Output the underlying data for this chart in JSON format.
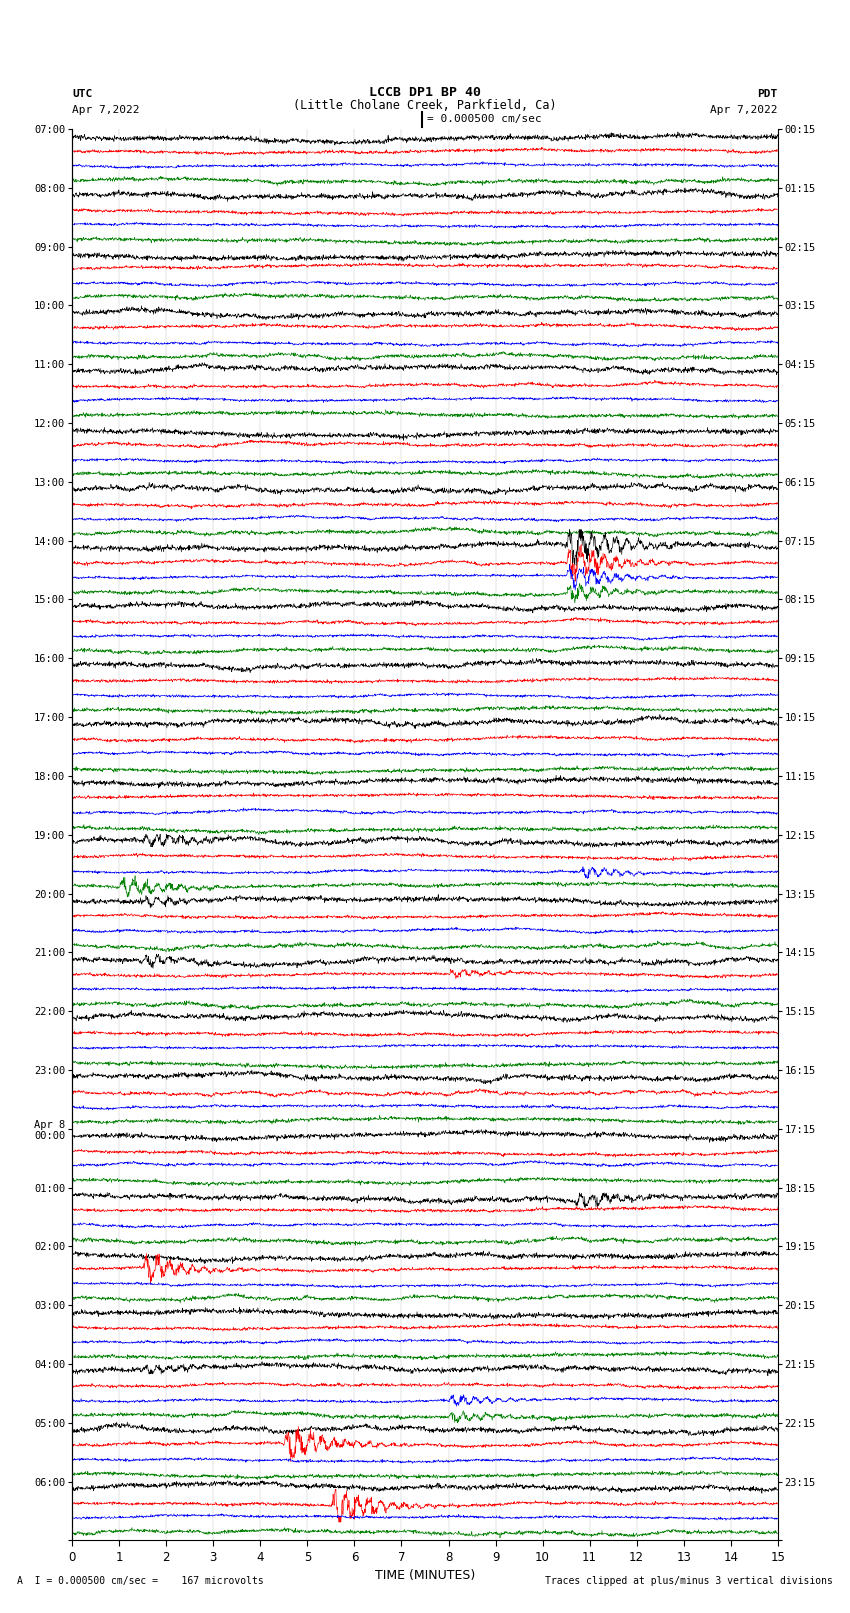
{
  "title_line1": "LCCB DP1 BP 40",
  "title_line2": "(Little Cholane Creek, Parkfield, Ca)",
  "scale_label": "= 0.000500 cm/sec",
  "left_header_line1": "UTC",
  "left_header_line2": "Apr 7,2022",
  "right_header_line1": "PDT",
  "right_header_line2": "Apr 7,2022",
  "xlabel": "TIME (MINUTES)",
  "footer_left": "A  I = 0.000500 cm/sec =    167 microvolts",
  "footer_right": "Traces clipped at plus/minus 3 vertical divisions",
  "xmin": 0,
  "xmax": 15,
  "xticks": [
    0,
    1,
    2,
    3,
    4,
    5,
    6,
    7,
    8,
    9,
    10,
    11,
    12,
    13,
    14,
    15
  ],
  "bg_color": "#ffffff",
  "colors": [
    "black",
    "red",
    "blue",
    "green"
  ],
  "utc_labels": [
    "07:00",
    "08:00",
    "09:00",
    "10:00",
    "11:00",
    "12:00",
    "13:00",
    "14:00",
    "15:00",
    "16:00",
    "17:00",
    "18:00",
    "19:00",
    "20:00",
    "21:00",
    "22:00",
    "23:00",
    "Apr 8\n00:00",
    "01:00",
    "02:00",
    "03:00",
    "04:00",
    "05:00",
    "06:00"
  ],
  "pdt_labels": [
    "00:15",
    "01:15",
    "02:15",
    "03:15",
    "04:15",
    "05:15",
    "06:15",
    "07:15",
    "08:15",
    "09:15",
    "10:15",
    "11:15",
    "12:15",
    "13:15",
    "14:15",
    "15:15",
    "16:15",
    "17:15",
    "18:15",
    "19:15",
    "20:15",
    "21:15",
    "22:15",
    "23:15"
  ],
  "seed": 42,
  "num_hours": 24,
  "traces_per_hour": 4,
  "noise_amp_black": 0.3,
  "noise_amp_red": 0.18,
  "noise_amp_blue": 0.15,
  "noise_amp_green": 0.22,
  "eq_hour": 7,
  "eq_minute": 10.5,
  "eq_amp_black": 3.5,
  "eq_amp_red": 3.0,
  "eq_amp_blue": 2.0,
  "eq_amp_green": 1.5,
  "ev2_hour": 18,
  "ev2_trace": 0,
  "ev2_minute": 10.7,
  "ev2_amp": 1.5,
  "ev3_hour": 19,
  "ev3_trace": 1,
  "ev3_minute": 1.5,
  "ev3_amp": 2.2,
  "ev4_hour": 21,
  "ev4_trace": 2,
  "ev4_minute": 8.0,
  "ev4_amp": 1.0,
  "ev5_hour": 21,
  "ev5_trace": 3,
  "ev5_minute": 8.0,
  "ev5_amp": 0.9,
  "ev6_hour": 21,
  "ev6_trace": 0,
  "ev6_minute": 1.5,
  "ev6_amp": 0.8,
  "ev7_hour": 22,
  "ev7_trace": 1,
  "ev7_minute": 4.5,
  "ev7_amp": 2.8,
  "ev8_hour": 23,
  "ev8_trace": 1,
  "ev8_minute": 5.5,
  "ev8_amp": 3.0,
  "ev9_hour": 12,
  "ev9_trace": 2,
  "ev9_minute": 10.8,
  "ev9_amp": 1.0
}
